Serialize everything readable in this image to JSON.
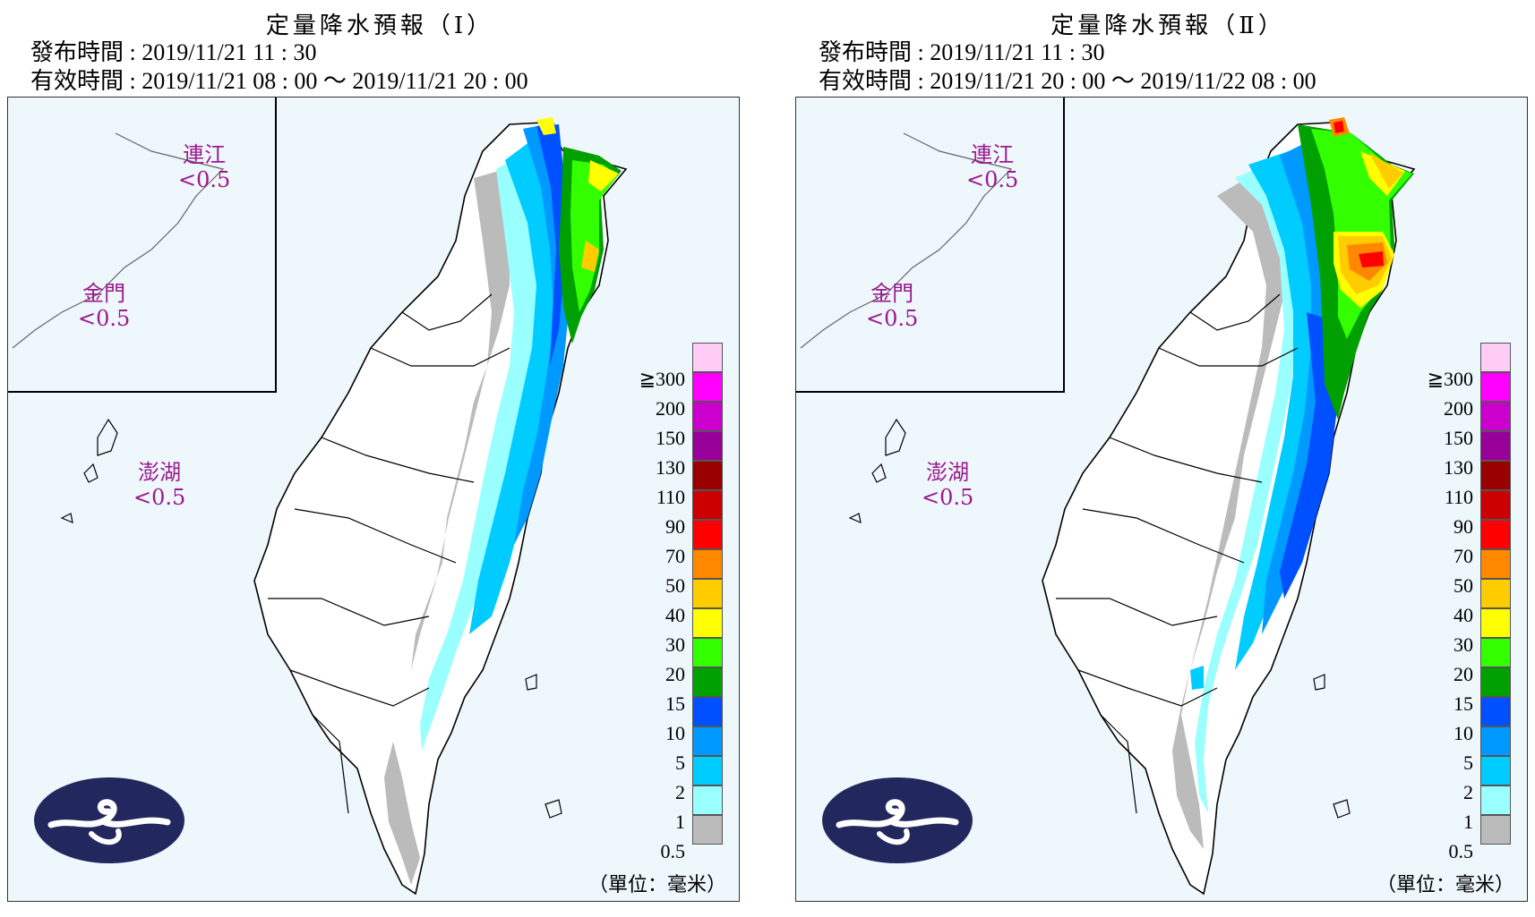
{
  "legend": {
    "colors": [
      "#ffccf5",
      "#ff00ff",
      "#cc00cc",
      "#990099",
      "#990000",
      "#cc0000",
      "#ff0000",
      "#ff8800",
      "#ffcc00",
      "#ffff00",
      "#33ff00",
      "#00a000",
      "#0050ff",
      "#0099ff",
      "#00ccff",
      "#99ffff",
      "#bbbbbb"
    ],
    "levels": [
      "≧300",
      "200",
      "150",
      "130",
      "110",
      "90",
      "70",
      "50",
      "40",
      "30",
      "20",
      "15",
      "10",
      "5",
      "2",
      "1",
      "0.5"
    ],
    "unit": "（單位：毫米）"
  },
  "panels": [
    {
      "title": "定量降水預報（Ⅰ）",
      "issue_time": "發布時間 : 2019/11/21 11 : 30",
      "valid_time": "有效時間 : 2019/11/21 08 : 00 ～ 2019/11/21 20 : 00",
      "lienchiang": {
        "name": "連江",
        "value": "<0.5"
      },
      "kinmen": {
        "name": "金門",
        "value": "<0.5"
      },
      "penghu": {
        "name": "澎湖",
        "value": "<0.5"
      }
    },
    {
      "title": "定量降水預報（Ⅱ）",
      "issue_time": "發布時間 : 2019/11/21 11 : 30",
      "valid_time": "有效時間 : 2019/11/21 20 : 00 ～ 2019/11/22 08 : 00",
      "lienchiang": {
        "name": "連江",
        "value": "<0.5"
      },
      "kinmen": {
        "name": "金門",
        "value": "<0.5"
      },
      "penghu": {
        "name": "澎湖",
        "value": "<0.5"
      }
    }
  ]
}
